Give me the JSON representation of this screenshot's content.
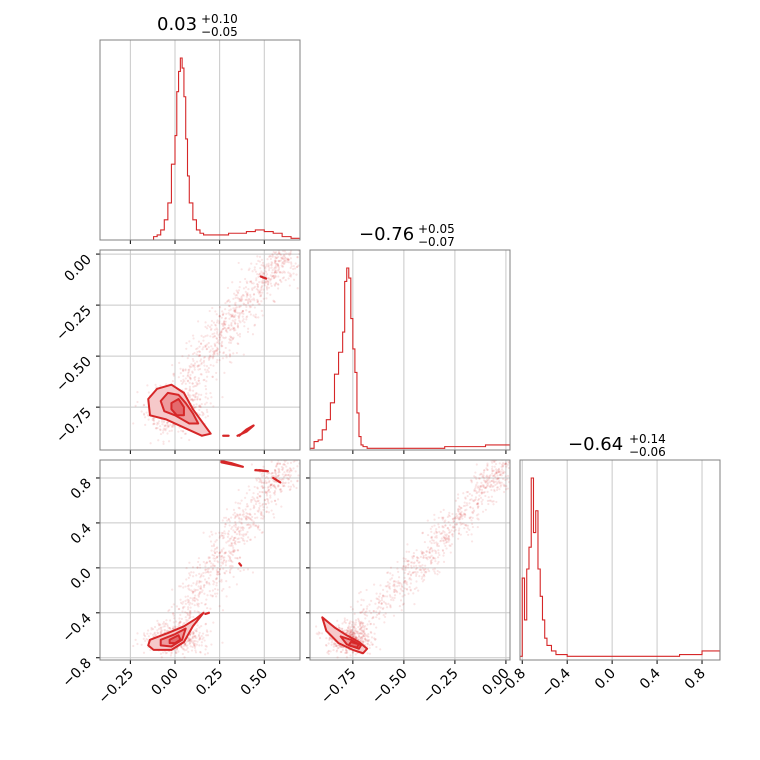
{
  "colors": {
    "series": "#d62728",
    "grid": "#c8c8c8",
    "frame": "#808080"
  },
  "chart_data": {
    "type": "corner",
    "grid": true,
    "n_params": 3,
    "params": [
      {
        "range": [
          -0.42,
          0.7
        ],
        "title": {
          "median": "0.03",
          "plus": "+0.10",
          "minus": "−0.05"
        }
      },
      {
        "range": [
          -0.96,
          0.02
        ],
        "title": {
          "median": "−0.76",
          "plus": "+0.05",
          "minus": "−0.07"
        }
      },
      {
        "range": [
          -0.82,
          0.96
        ],
        "title": {
          "median": "−0.64",
          "plus": "+0.14",
          "minus": "−0.06"
        }
      }
    ],
    "x_ticks": [
      {
        "values": [
          -0.25,
          0.0,
          0.25,
          0.5
        ],
        "labels": [
          "−0.25",
          "0.00",
          "0.25",
          "0.50"
        ]
      },
      {
        "values": [
          -0.75,
          -0.5,
          -0.25,
          0.0
        ],
        "labels": [
          "−0.75",
          "−0.50",
          "−0.25",
          "0.00"
        ]
      },
      {
        "values": [
          -0.8,
          -0.4,
          0.0,
          0.4,
          0.8
        ],
        "labels": [
          "−0.8",
          "−0.4",
          "0.0",
          "0.4",
          "0.8"
        ]
      }
    ],
    "y_ticks": [
      null,
      {
        "values": [
          0.0,
          -0.25,
          -0.5,
          -0.75
        ],
        "labels": [
          "0.00",
          "−0.25",
          "−0.50",
          "−0.75"
        ]
      },
      {
        "values": [
          0.8,
          0.4,
          0.0,
          -0.4,
          -0.8
        ],
        "labels": [
          "0.8",
          "0.4",
          "0.0",
          "−0.4",
          "−0.8"
        ]
      }
    ],
    "histograms": [
      {
        "edges": [
          -0.12,
          -0.1,
          -0.08,
          -0.06,
          -0.04,
          -0.02,
          0.0,
          0.01,
          0.02,
          0.03,
          0.04,
          0.05,
          0.06,
          0.07,
          0.08,
          0.1,
          0.12,
          0.14,
          0.16,
          0.2,
          0.3,
          0.4,
          0.45,
          0.5,
          0.55,
          0.6,
          0.65,
          0.7
        ],
        "counts": [
          2,
          3,
          6,
          12,
          22,
          45,
          62,
          88,
          100,
          108,
          102,
          85,
          60,
          38,
          22,
          12,
          6,
          4,
          3,
          3,
          4,
          5,
          6,
          5,
          4,
          2,
          1
        ]
      },
      {
        "edges": [
          -0.96,
          -0.94,
          -0.92,
          -0.9,
          -0.88,
          -0.86,
          -0.84,
          -0.82,
          -0.8,
          -0.79,
          -0.78,
          -0.77,
          -0.76,
          -0.75,
          -0.74,
          -0.73,
          -0.72,
          -0.71,
          -0.7,
          -0.68,
          -0.66,
          -0.62,
          -0.5,
          -0.3,
          -0.1,
          0.02
        ],
        "counts": [
          1,
          5,
          6,
          12,
          18,
          28,
          45,
          58,
          70,
          100,
          108,
          102,
          78,
          60,
          46,
          22,
          8,
          3,
          2,
          1,
          1,
          1,
          1,
          2,
          3
        ]
      },
      {
        "edges": [
          -0.82,
          -0.8,
          -0.78,
          -0.76,
          -0.74,
          -0.72,
          -0.7,
          -0.68,
          -0.66,
          -0.64,
          -0.62,
          -0.6,
          -0.58,
          -0.54,
          -0.5,
          -0.4,
          -0.2,
          0.0,
          0.2,
          0.4,
          0.6,
          0.8,
          0.96
        ],
        "counts": [
          2,
          45,
          22,
          50,
          62,
          100,
          70,
          82,
          50,
          35,
          22,
          12,
          8,
          5,
          3,
          2,
          2,
          2,
          2,
          2,
          3,
          5
        ]
      }
    ],
    "pairs": [
      {
        "x_param": 0,
        "y_param": 1,
        "contours": [
          {
            "level": "outer",
            "points": [
              [
                -0.15,
                -0.71
              ],
              [
                -0.1,
                -0.66
              ],
              [
                -0.02,
                -0.64
              ],
              [
                0.05,
                -0.68
              ],
              [
                0.1,
                -0.76
              ],
              [
                0.15,
                -0.82
              ],
              [
                0.2,
                -0.88
              ],
              [
                0.15,
                -0.89
              ],
              [
                0.05,
                -0.85
              ],
              [
                -0.05,
                -0.81
              ],
              [
                -0.14,
                -0.79
              ]
            ]
          },
          {
            "level": "mid",
            "points": [
              [
                -0.08,
                -0.72
              ],
              [
                -0.04,
                -0.68
              ],
              [
                0.02,
                -0.69
              ],
              [
                0.06,
                -0.73
              ],
              [
                0.1,
                -0.78
              ],
              [
                0.13,
                -0.83
              ],
              [
                0.08,
                -0.83
              ],
              [
                0.0,
                -0.79
              ],
              [
                -0.06,
                -0.77
              ]
            ]
          },
          {
            "level": "inner",
            "points": [
              [
                -0.02,
                -0.73
              ],
              [
                0.02,
                -0.71
              ],
              [
                0.05,
                -0.75
              ],
              [
                0.05,
                -0.79
              ],
              [
                0.01,
                -0.79
              ],
              [
                -0.02,
                -0.76
              ]
            ]
          }
        ],
        "lines": [
          [
            [
              0.35,
              -0.89
            ],
            [
              0.4,
              -0.87
            ],
            [
              0.44,
              -0.84
            ],
            [
              0.4,
              -0.86
            ],
            [
              0.36,
              -0.89
            ]
          ],
          [
            [
              0.48,
              -0.11
            ],
            [
              0.51,
              -0.12
            ]
          ],
          [
            [
              0.27,
              -0.89
            ],
            [
              0.3,
              -0.89
            ]
          ]
        ]
      },
      {
        "x_param": 0,
        "y_param": 2,
        "contours": [
          {
            "level": "outer",
            "points": [
              [
                -0.14,
                -0.64
              ],
              [
                -0.04,
                -0.58
              ],
              [
                0.05,
                -0.52
              ],
              [
                0.12,
                -0.45
              ],
              [
                0.16,
                -0.4
              ],
              [
                0.1,
                -0.52
              ],
              [
                0.05,
                -0.66
              ],
              [
                -0.02,
                -0.73
              ],
              [
                -0.12,
                -0.73
              ],
              [
                -0.15,
                -0.69
              ]
            ]
          },
          {
            "level": "mid",
            "points": [
              [
                -0.08,
                -0.64
              ],
              [
                0.0,
                -0.59
              ],
              [
                0.06,
                -0.54
              ],
              [
                0.04,
                -0.64
              ],
              [
                -0.02,
                -0.7
              ],
              [
                -0.08,
                -0.69
              ]
            ]
          },
          {
            "level": "inner",
            "points": [
              [
                -0.03,
                -0.64
              ],
              [
                0.02,
                -0.6
              ],
              [
                0.03,
                -0.64
              ],
              [
                0.0,
                -0.67
              ],
              [
                -0.03,
                -0.67
              ]
            ]
          }
        ],
        "lines": [
          [
            [
              0.26,
              0.95
            ],
            [
              0.32,
              0.93
            ],
            [
              0.38,
              0.9
            ],
            [
              0.32,
              0.92
            ],
            [
              0.26,
              0.94
            ]
          ],
          [
            [
              0.45,
              0.87
            ],
            [
              0.52,
              0.86
            ],
            [
              0.47,
              0.87
            ]
          ],
          [
            [
              0.55,
              0.8
            ],
            [
              0.59,
              0.76
            ],
            [
              0.56,
              0.79
            ]
          ],
          [
            [
              0.36,
              0.04
            ],
            [
              0.37,
              0.02
            ]
          ],
          [
            [
              0.17,
              -0.41
            ],
            [
              0.19,
              -0.4
            ]
          ]
        ]
      },
      {
        "x_param": 1,
        "y_param": 2,
        "contours": [
          {
            "level": "outer",
            "points": [
              [
                -0.9,
                -0.44
              ],
              [
                -0.84,
                -0.53
              ],
              [
                -0.78,
                -0.6
              ],
              [
                -0.72,
                -0.66
              ],
              [
                -0.68,
                -0.72
              ],
              [
                -0.7,
                -0.76
              ],
              [
                -0.75,
                -0.73
              ],
              [
                -0.82,
                -0.67
              ],
              [
                -0.88,
                -0.56
              ]
            ]
          },
          {
            "level": "mid",
            "points": [
              [
                -0.81,
                -0.61
              ],
              [
                -0.76,
                -0.64
              ],
              [
                -0.71,
                -0.69
              ],
              [
                -0.72,
                -0.72
              ],
              [
                -0.78,
                -0.68
              ]
            ]
          },
          {
            "level": "inner",
            "points": [
              [
                -0.76,
                -0.66
              ],
              [
                -0.72,
                -0.68
              ],
              [
                -0.73,
                -0.71
              ],
              [
                -0.77,
                -0.69
              ]
            ]
          }
        ],
        "lines": []
      }
    ]
  }
}
